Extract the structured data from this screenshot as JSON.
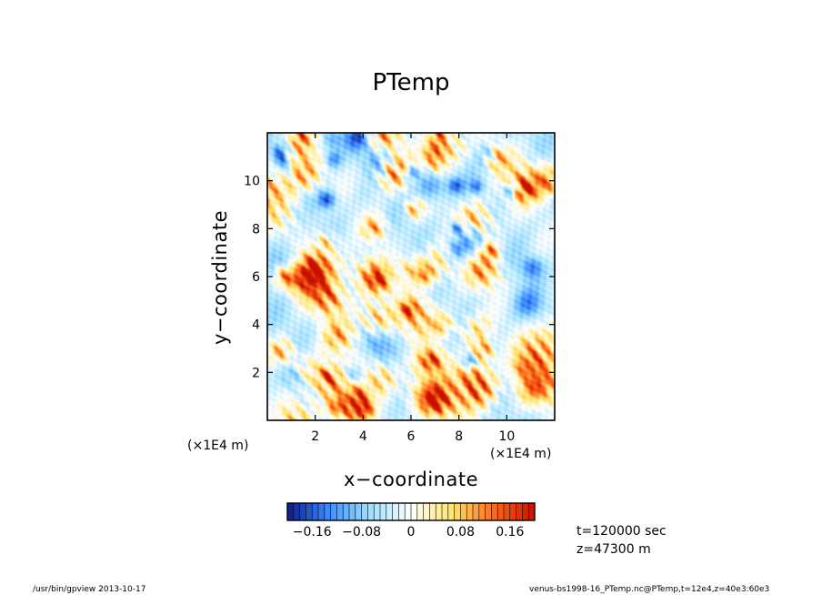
{
  "chart_data": {
    "type": "heatmap",
    "title": "PTemp",
    "xlabel": "x−coordinate",
    "ylabel": "y−coordinate",
    "xlim": [
      0,
      12
    ],
    "ylim": [
      0,
      12
    ],
    "x_ticks": [
      2,
      4,
      6,
      8,
      10
    ],
    "y_ticks": [
      2,
      4,
      6,
      8,
      10
    ],
    "x_tick_labels": [
      "2",
      "4",
      "6",
      "8",
      "10"
    ],
    "y_tick_labels": [
      "2",
      "4",
      "6",
      "8",
      "10"
    ],
    "x_scale_label": "(×1E4 m)",
    "y_scale_label": "(×1E4 m)",
    "colorbar": {
      "range": [
        -0.2,
        0.2
      ],
      "ticks": [
        -0.16,
        -0.08,
        0,
        0.08,
        0.16
      ],
      "tick_labels": [
        "−0.16",
        "−0.08",
        "0",
        "0.08",
        "0.16"
      ],
      "colormap": "blue-cyan-white-yellow-red"
    },
    "annotations": [
      "t=120000 sec",
      "z=47300 m"
    ]
  },
  "footer": {
    "left": "/usr/bin/gpview   2013-10-17",
    "right": "venus-bs1998-16_PTemp.nc@PTemp,t=12e4,z=40e3:60e3"
  },
  "colors": {
    "cold_extreme": "#0a1a8c",
    "cold": "#3c8cff",
    "cool": "#9fe0ff",
    "neutral": "#ffffff",
    "warm": "#ffe46e",
    "hot": "#ff6a1a",
    "hot_extreme": "#c81000"
  }
}
